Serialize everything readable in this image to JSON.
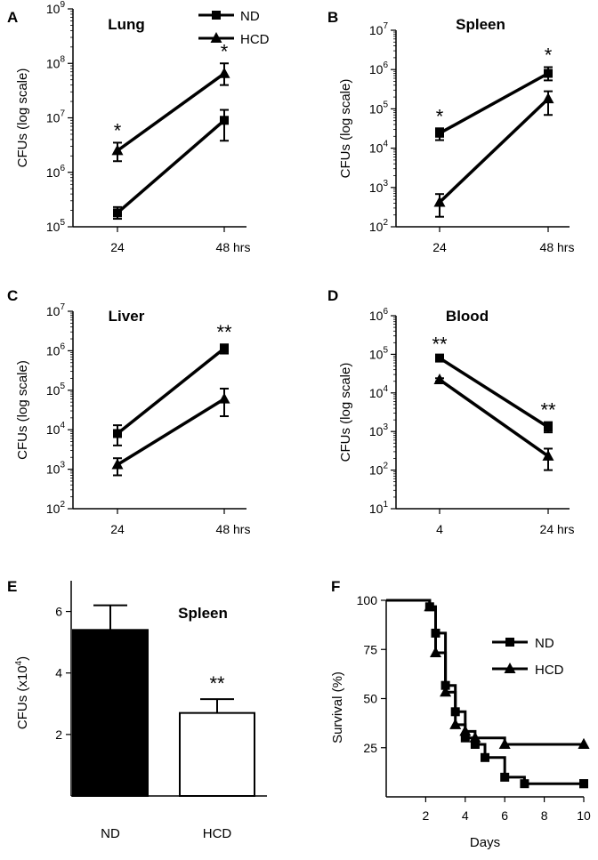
{
  "figure_name": "multi-panel-cfu-survival-figure",
  "chart_data": [
    {
      "panel": "A",
      "type": "line",
      "title": "Lung",
      "xlabel": "",
      "ylabel": "CFUs (log scale)",
      "yscale": "log",
      "x_tick_labels": [
        "24",
        "48 hrs"
      ],
      "y_exponents": [
        5,
        6,
        7,
        8,
        9
      ],
      "y_tick_base": "10",
      "ylim": [
        100000,
        1000000000
      ],
      "legend": {
        "placement": "top-center",
        "entries": [
          "ND",
          "HCD"
        ]
      },
      "series": [
        {
          "name": "ND",
          "marker": "square",
          "points": [
            {
              "x": "24",
              "y": 180000,
              "err_low": 140000,
              "err_high": 230000
            },
            {
              "x": "48 hrs",
              "y": 9000000,
              "err_low": 3800000,
              "err_high": 14000000
            }
          ]
        },
        {
          "name": "HCD",
          "marker": "triangle",
          "points": [
            {
              "x": "24",
              "y": 2500000,
              "err_low": 1600000,
              "err_high": 3500000
            },
            {
              "x": "48 hrs",
              "y": 65000000,
              "err_low": 40000000,
              "err_high": 100000000
            }
          ]
        }
      ],
      "annotations": [
        {
          "x": "24",
          "text": "*",
          "above": 3500000
        },
        {
          "x": "48 hrs",
          "text": "*",
          "above": 100000000
        }
      ]
    },
    {
      "panel": "B",
      "type": "line",
      "title": "Spleen",
      "xlabel": "",
      "ylabel": "CFUs (log scale)",
      "yscale": "log",
      "x_tick_labels": [
        "24",
        "48 hrs"
      ],
      "y_exponents": [
        2,
        3,
        4,
        5,
        6,
        7
      ],
      "y_tick_base": "10",
      "ylim": [
        100,
        10000000
      ],
      "series": [
        {
          "name": "ND",
          "marker": "square",
          "points": [
            {
              "x": "24",
              "y": 24000,
              "err_low": 16000,
              "err_high": 32000
            },
            {
              "x": "48 hrs",
              "y": 800000,
              "err_low": 530000,
              "err_high": 1150000
            }
          ]
        },
        {
          "name": "HCD",
          "marker": "triangle",
          "points": [
            {
              "x": "24",
              "y": 420,
              "err_low": 180,
              "err_high": 680
            },
            {
              "x": "48 hrs",
              "y": 180000,
              "err_low": 70000,
              "err_high": 280000
            }
          ]
        }
      ],
      "annotations": [
        {
          "x": "24",
          "text": "*",
          "above": 32000
        },
        {
          "x": "48 hrs",
          "text": "*",
          "above": 1150000
        }
      ]
    },
    {
      "panel": "C",
      "type": "line",
      "title": "Liver",
      "xlabel": "",
      "ylabel": "CFUs (log scale)",
      "yscale": "log",
      "x_tick_labels": [
        "24",
        "48 hrs"
      ],
      "y_exponents": [
        2,
        3,
        4,
        5,
        6,
        7
      ],
      "y_tick_base": "10",
      "ylim": [
        100,
        10000000
      ],
      "series": [
        {
          "name": "ND",
          "marker": "square",
          "points": [
            {
              "x": "24",
              "y": 8000,
              "err_low": 4000,
              "err_high": 13000
            },
            {
              "x": "48 hrs",
              "y": 1150000,
              "err_low": 850000,
              "err_high": 1450000
            }
          ]
        },
        {
          "name": "HCD",
          "marker": "triangle",
          "points": [
            {
              "x": "24",
              "y": 1300,
              "err_low": 700,
              "err_high": 1900
            },
            {
              "x": "48 hrs",
              "y": 60000,
              "err_low": 22000,
              "err_high": 110000
            }
          ]
        }
      ],
      "annotations": [
        {
          "x": "48 hrs",
          "text": "**",
          "above": 1450000
        }
      ]
    },
    {
      "panel": "D",
      "type": "line",
      "title": "Blood",
      "xlabel": "",
      "ylabel": "CFUs (log scale)",
      "yscale": "log",
      "x_tick_labels": [
        "4",
        "24 hrs"
      ],
      "y_exponents": [
        1,
        2,
        3,
        4,
        5,
        6
      ],
      "y_tick_base": "10",
      "ylim": [
        10,
        1000000
      ],
      "series": [
        {
          "name": "ND",
          "marker": "square",
          "points": [
            {
              "x": "4",
              "y": 80000,
              "err_low": 70000,
              "err_high": 90000
            },
            {
              "x": "24 hrs",
              "y": 1300,
              "err_low": 950,
              "err_high": 1750
            }
          ]
        },
        {
          "name": "HCD",
          "marker": "triangle",
          "points": [
            {
              "x": "4",
              "y": 22000,
              "err_low": 20000,
              "err_high": 24000
            },
            {
              "x": "24 hrs",
              "y": 230,
              "err_low": 100,
              "err_high": 360
            }
          ]
        }
      ],
      "annotations": [
        {
          "x": "4",
          "text": "**",
          "above": 90000
        },
        {
          "x": "24 hrs",
          "text": "**",
          "above": 1750
        }
      ]
    },
    {
      "panel": "E",
      "type": "bar",
      "title": "Spleen",
      "xlabel": "",
      "ylabel": "CFUs (x10",
      "ylabel_sup": "4",
      "ylabel_close": ")",
      "categories": [
        "ND",
        "HCD"
      ],
      "values": [
        5.4,
        2.7
      ],
      "errors": [
        0.8,
        0.45
      ],
      "bar_colors": [
        "#000000",
        "#ffffff"
      ],
      "ylim": [
        0,
        7
      ],
      "y_ticks": [
        2,
        4,
        6
      ],
      "annotations": [
        {
          "category": "HCD",
          "text": "**",
          "above": 3.15
        }
      ]
    },
    {
      "panel": "F",
      "type": "line",
      "title": "",
      "xlabel": "Days",
      "ylabel": "Survival (%)",
      "xlim": [
        0,
        10
      ],
      "ylim": [
        0,
        100
      ],
      "x_ticks": [
        2,
        4,
        6,
        8,
        10
      ],
      "y_ticks": [
        25,
        50,
        75,
        100
      ],
      "legend": {
        "placement": "right",
        "entries": [
          "ND",
          "HCD"
        ]
      },
      "series": [
        {
          "name": "ND",
          "marker": "square",
          "step": true,
          "points": [
            [
              0,
              100
            ],
            [
              2,
              100
            ],
            [
              2.2,
              96.7
            ],
            [
              2.5,
              83.3
            ],
            [
              3,
              56.7
            ],
            [
              3.5,
              43.3
            ],
            [
              4,
              30
            ],
            [
              4.5,
              26.7
            ],
            [
              5,
              20
            ],
            [
              6,
              10
            ],
            [
              7,
              6.7
            ],
            [
              10,
              6.7
            ]
          ]
        },
        {
          "name": "HCD",
          "marker": "triangle",
          "step": true,
          "points": [
            [
              0,
              100
            ],
            [
              2,
              100
            ],
            [
              2.2,
              96.7
            ],
            [
              2.5,
              73.3
            ],
            [
              3,
              53.3
            ],
            [
              3.5,
              36.7
            ],
            [
              4,
              33.3
            ],
            [
              4.5,
              30
            ],
            [
              6,
              26.7
            ],
            [
              10,
              26.7
            ]
          ]
        }
      ]
    }
  ]
}
